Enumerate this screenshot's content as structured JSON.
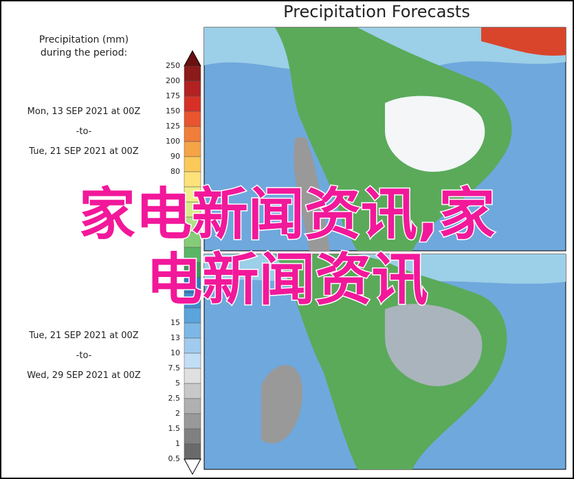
{
  "header": {
    "title": "Precipitation Forecasts"
  },
  "legend": {
    "title_line1": "Precipitation (mm)",
    "title_line2": "during the period:",
    "ticks_top": [
      "250",
      "200",
      "175",
      "150",
      "125",
      "100",
      "90",
      "80"
    ],
    "ticks_bottom": [
      "15",
      "13",
      "10",
      "7.5",
      "5",
      "2.5",
      "2",
      "1.5",
      "1",
      "0.5"
    ]
  },
  "periods": [
    {
      "start": "Mon, 13 SEP 2021 at 00Z",
      "sep": "-to-",
      "end": "Tue, 21 SEP 2021 at 00Z"
    },
    {
      "start": "Tue, 21 SEP 2021 at 00Z",
      "sep": "-to-",
      "end": "Wed, 29 SEP 2021 at 00Z"
    }
  ],
  "overlay": {
    "line1": "家电新闻资讯,家",
    "line2": "电新闻资讯"
  }
}
